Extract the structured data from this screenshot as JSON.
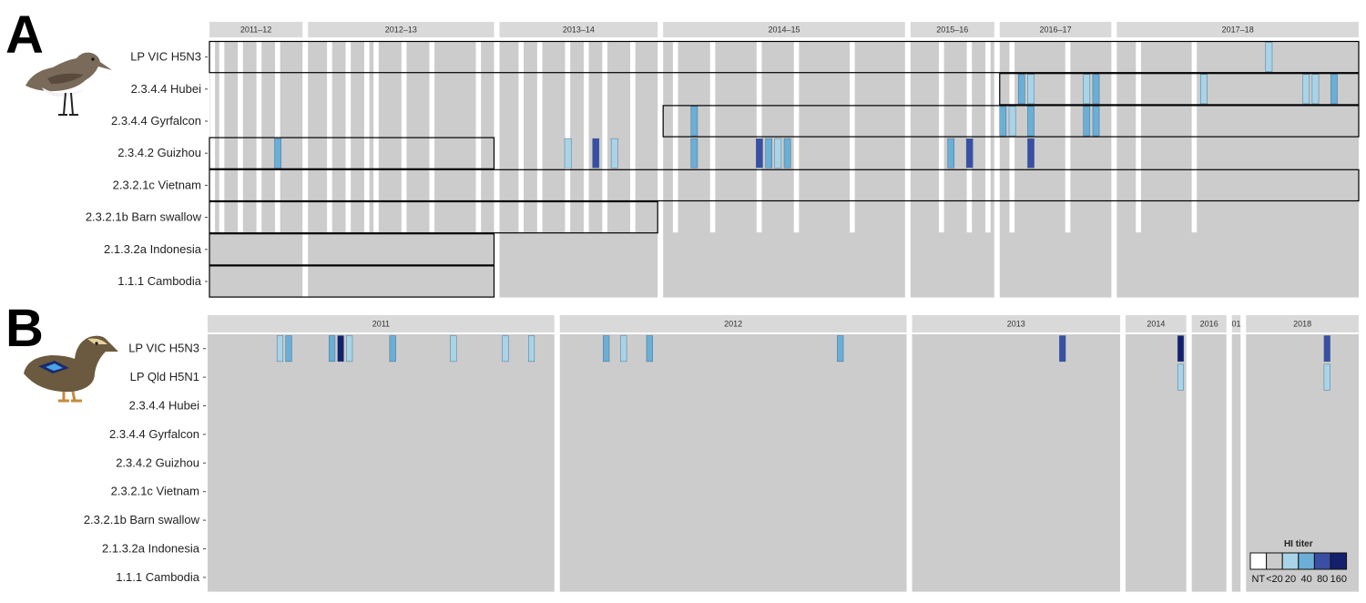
{
  "colors": {
    "NT": "#ffffff",
    "<20": "#cccccc",
    "20": "#a9d4e8",
    "40": "#6baed6",
    "80": "#3a4ea3",
    "160": "#14206b",
    "strip": "#d9d9d9",
    "outline": "#000000"
  },
  "legend": {
    "title": "HI titer",
    "levels": [
      "NT",
      "<20",
      "20",
      "40",
      "80",
      "160"
    ]
  },
  "chart_data": [
    {
      "type": "heatmap",
      "panel": "A",
      "panel_label": "A",
      "icon": "sandpiper-icon",
      "title": "",
      "facets": [
        {
          "label": "2011–12",
          "n": 10
        },
        {
          "label": "2012–13",
          "n": 20
        },
        {
          "label": "2013–14",
          "n": 17
        },
        {
          "label": "2014–15",
          "n": 26
        },
        {
          "label": "2015–16",
          "n": 9
        },
        {
          "label": "2016–17",
          "n": 12
        },
        {
          "label": "2017–18",
          "n": 26
        }
      ],
      "rows": [
        "LP VIC H5N3",
        "2.3.4.4 Hubei",
        "2.3.4.4 Gyrfalcon",
        "2.3.4.2 Guizhou",
        "2.3.2.1c Vietnam",
        "2.3.2.1b Barn swallow",
        "2.1.3.2a Indonesia",
        "1.1.1 Cambodia"
      ],
      "positive_titers": [
        {
          "row": "LP VIC H5N3",
          "facet": "2017–18",
          "sample": 17,
          "titer": "20"
        },
        {
          "row": "2.3.4.4 Hubei",
          "facet": "2016–17",
          "sample": 3,
          "titer": "40"
        },
        {
          "row": "2.3.4.4 Hubei",
          "facet": "2016–17",
          "sample": 4,
          "titer": "20"
        },
        {
          "row": "2.3.4.4 Hubei",
          "facet": "2016–17",
          "sample": 10,
          "titer": "20"
        },
        {
          "row": "2.3.4.4 Hubei",
          "facet": "2016–17",
          "sample": 11,
          "titer": "40"
        },
        {
          "row": "2.3.4.4 Hubei",
          "facet": "2017–18",
          "sample": 10,
          "titer": "20"
        },
        {
          "row": "2.3.4.4 Hubei",
          "facet": "2017–18",
          "sample": 21,
          "titer": "20"
        },
        {
          "row": "2.3.4.4 Hubei",
          "facet": "2017–18",
          "sample": 22,
          "titer": "20"
        },
        {
          "row": "2.3.4.4 Hubei",
          "facet": "2017–18",
          "sample": 24,
          "titer": "40"
        },
        {
          "row": "2.3.4.4 Gyrfalcon",
          "facet": "2014–15",
          "sample": 4,
          "titer": "40"
        },
        {
          "row": "2.3.4.4 Gyrfalcon",
          "facet": "2016–17",
          "sample": 1,
          "titer": "40"
        },
        {
          "row": "2.3.4.4 Gyrfalcon",
          "facet": "2016–17",
          "sample": 2,
          "titer": "20"
        },
        {
          "row": "2.3.4.4 Gyrfalcon",
          "facet": "2016–17",
          "sample": 4,
          "titer": "40"
        },
        {
          "row": "2.3.4.4 Gyrfalcon",
          "facet": "2016–17",
          "sample": 10,
          "titer": "40"
        },
        {
          "row": "2.3.4.4 Gyrfalcon",
          "facet": "2016–17",
          "sample": 11,
          "titer": "40"
        },
        {
          "row": "2.3.4.2 Guizhou",
          "facet": "2011–12",
          "sample": 8,
          "titer": "40"
        },
        {
          "row": "2.3.4.2 Guizhou",
          "facet": "2013–14",
          "sample": 8,
          "titer": "20"
        },
        {
          "row": "2.3.4.2 Guizhou",
          "facet": "2013–14",
          "sample": 11,
          "titer": "80"
        },
        {
          "row": "2.3.4.2 Guizhou",
          "facet": "2013–14",
          "sample": 13,
          "titer": "20"
        },
        {
          "row": "2.3.4.2 Guizhou",
          "facet": "2014–15",
          "sample": 4,
          "titer": "40"
        },
        {
          "row": "2.3.4.2 Guizhou",
          "facet": "2014–15",
          "sample": 11,
          "titer": "80"
        },
        {
          "row": "2.3.4.2 Guizhou",
          "facet": "2014–15",
          "sample": 12,
          "titer": "40"
        },
        {
          "row": "2.3.4.2 Guizhou",
          "facet": "2014–15",
          "sample": 13,
          "titer": "20"
        },
        {
          "row": "2.3.4.2 Guizhou",
          "facet": "2014–15",
          "sample": 14,
          "titer": "40"
        },
        {
          "row": "2.3.4.2 Guizhou",
          "facet": "2015–16",
          "sample": 5,
          "titer": "40"
        },
        {
          "row": "2.3.4.2 Guizhou",
          "facet": "2015–16",
          "sample": 7,
          "titer": "80"
        },
        {
          "row": "2.3.4.2 Guizhou",
          "facet": "2016–17",
          "sample": 4,
          "titer": "80"
        }
      ],
      "not_tested_samples": [
        {
          "facet": "2011–12",
          "samples": [
            1,
            2,
            4,
            6,
            8
          ]
        },
        {
          "facet": "2012–13",
          "samples": [
            3,
            5,
            7,
            8,
            11,
            14,
            19
          ]
        },
        {
          "facet": "2013–14",
          "samples": [
            3,
            5,
            8,
            10,
            12,
            15
          ]
        },
        {
          "facet": "2014–15",
          "samples": [
            2,
            6,
            11,
            15,
            21
          ]
        },
        {
          "facet": "2015–16",
          "samples": [
            4,
            7,
            9
          ]
        },
        {
          "facet": "2016–17",
          "samples": [
            2,
            8
          ]
        },
        {
          "facet": "2017–18",
          "samples": [
            3,
            9
          ]
        }
      ],
      "tested_boxes": [
        {
          "row": "LP VIC H5N3",
          "from": "2011–12",
          "to": "2017–18"
        },
        {
          "row": "2.3.4.4 Hubei",
          "from": "2016–17",
          "to": "2017–18"
        },
        {
          "row": "2.3.4.4 Gyrfalcon",
          "from": "2014–15",
          "to": "2017–18"
        },
        {
          "row": "2.3.4.2 Guizhou",
          "from": "2011–12",
          "to": "2012–13"
        },
        {
          "row": "2.3.2.1c Vietnam",
          "from": "2011–12",
          "to": "2017–18"
        },
        {
          "row": "2.3.2.1b Barn swallow",
          "from": "2011–12",
          "to": "2013–14"
        },
        {
          "row": "2.1.3.2a Indonesia",
          "from": "2011–12",
          "to": "2012–13"
        },
        {
          "row": "1.1.1 Cambodia",
          "from": "2011–12",
          "to": "2012–13"
        }
      ]
    },
    {
      "type": "heatmap",
      "panel": "B",
      "panel_label": "B",
      "icon": "duck-icon",
      "title": "",
      "facets": [
        {
          "label": "2011",
          "n": 40
        },
        {
          "label": "2012",
          "n": 40
        },
        {
          "label": "2013",
          "n": 24
        },
        {
          "label": "2014",
          "n": 7
        },
        {
          "label": "2016",
          "n": 4
        },
        {
          "label": "01",
          "n": 1
        },
        {
          "label": "2018",
          "n": 13
        }
      ],
      "rows": [
        "LP VIC H5N3",
        "LP Qld H5N1",
        "2.3.4.4 Hubei",
        "2.3.4.4 Gyrfalcon",
        "2.3.4.2 Guizhou",
        "2.3.2.1c Vietnam",
        "2.3.2.1b Barn swallow",
        "2.1.3.2a Indonesia",
        "1.1.1 Cambodia"
      ],
      "positive_titers": [
        {
          "row": "LP VIC H5N3",
          "facet": "2011",
          "sample": 9,
          "titer": "20"
        },
        {
          "row": "LP VIC H5N3",
          "facet": "2011",
          "sample": 10,
          "titer": "40"
        },
        {
          "row": "LP VIC H5N3",
          "facet": "2011",
          "sample": 15,
          "titer": "40"
        },
        {
          "row": "LP VIC H5N3",
          "facet": "2011",
          "sample": 16,
          "titer": "160"
        },
        {
          "row": "LP VIC H5N3",
          "facet": "2011",
          "sample": 17,
          "titer": "20"
        },
        {
          "row": "LP VIC H5N3",
          "facet": "2011",
          "sample": 22,
          "titer": "40"
        },
        {
          "row": "LP VIC H5N3",
          "facet": "2011",
          "sample": 29,
          "titer": "20"
        },
        {
          "row": "LP VIC H5N3",
          "facet": "2011",
          "sample": 35,
          "titer": "20"
        },
        {
          "row": "LP VIC H5N3",
          "facet": "2011",
          "sample": 38,
          "titer": "20"
        },
        {
          "row": "LP VIC H5N3",
          "facet": "2012",
          "sample": 6,
          "titer": "40"
        },
        {
          "row": "LP VIC H5N3",
          "facet": "2012",
          "sample": 8,
          "titer": "20"
        },
        {
          "row": "LP VIC H5N3",
          "facet": "2012",
          "sample": 11,
          "titer": "40"
        },
        {
          "row": "LP VIC H5N3",
          "facet": "2012",
          "sample": 33,
          "titer": "40"
        },
        {
          "row": "LP VIC H5N3",
          "facet": "2013",
          "sample": 18,
          "titer": "80"
        },
        {
          "row": "LP VIC H5N3",
          "facet": "2014",
          "sample": 7,
          "titer": "160"
        },
        {
          "row": "LP Qld H5N1",
          "facet": "2014",
          "sample": 7,
          "titer": "20"
        },
        {
          "row": "LP VIC H5N3",
          "facet": "2018",
          "sample": 10,
          "titer": "80"
        },
        {
          "row": "LP Qld H5N1",
          "facet": "2018",
          "sample": 10,
          "titer": "20"
        }
      ]
    }
  ]
}
